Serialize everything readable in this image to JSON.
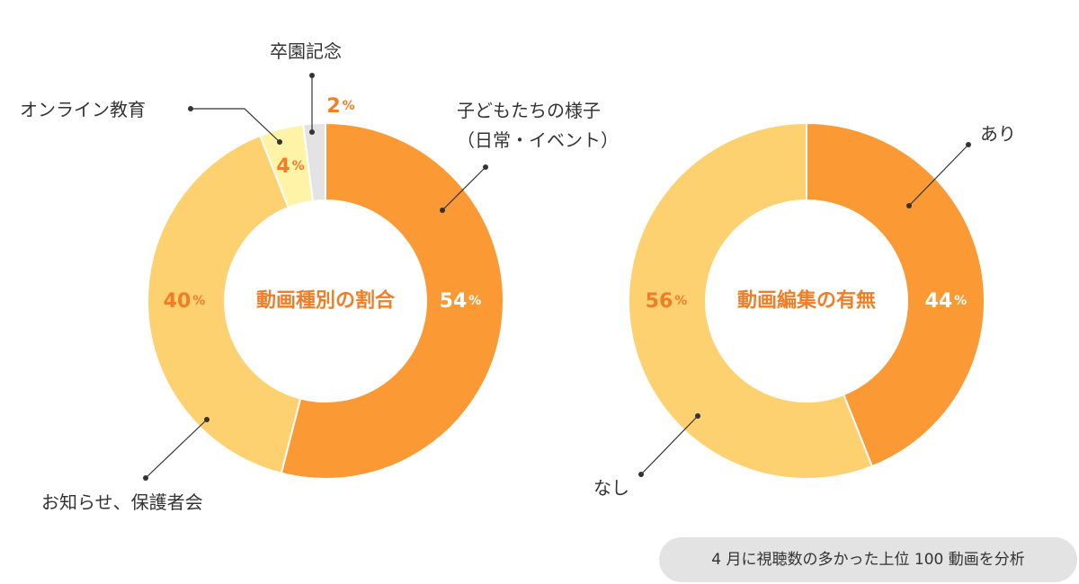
{
  "chart_data": [
    {
      "type": "pie",
      "subtype": "donut",
      "title": "動画種別の割合",
      "slices": [
        {
          "label": "子どもたちの様子\n（日常・イベント）",
          "value": 54,
          "color": "#fb9a35",
          "pct_color": "#ffffff"
        },
        {
          "label": "お知らせ、保護者会",
          "value": 40,
          "color": "#fdd070",
          "pct_color": "#f07e27"
        },
        {
          "label": "オンライン教育",
          "value": 4,
          "color": "#fff3a8",
          "pct_color": "#f07e27"
        },
        {
          "label": "卒園記念",
          "value": 2,
          "color": "#e3e3e3",
          "pct_color": "#f07e27"
        }
      ],
      "unit": "%"
    },
    {
      "type": "pie",
      "subtype": "donut",
      "title": "動画編集の有無",
      "slices": [
        {
          "label": "あり",
          "value": 44,
          "color": "#fb9a35",
          "pct_color": "#ffffff"
        },
        {
          "label": "なし",
          "value": 56,
          "color": "#fdd070",
          "pct_color": "#f07e27"
        }
      ],
      "unit": "%"
    }
  ],
  "title_color": "#f07e27",
  "footnote": "4 月に視聴数の多かった上位 100 動画を分析"
}
